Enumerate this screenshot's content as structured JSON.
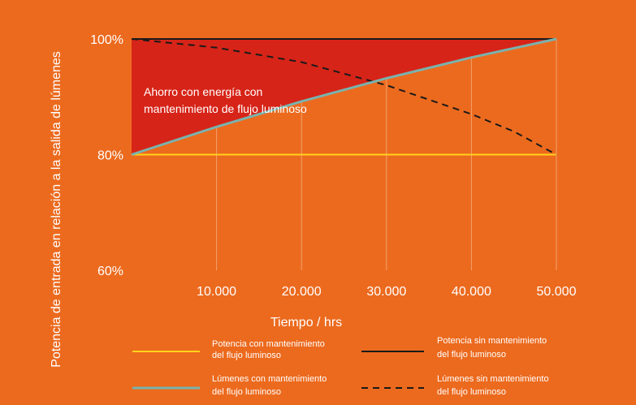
{
  "colors": {
    "background": "#EC6A1E",
    "savings_area": "#D72418",
    "yellow_line": "#FFD21A",
    "teal_line": "#79B3AE",
    "black_line": "#1a1a1a",
    "grid": "#F3A06F"
  },
  "chart_data": {
    "type": "line",
    "title": "",
    "xlabel": "Tiempo / hrs",
    "ylabel": "Potencia de entrada en relación a la salida de lúmenes",
    "xlim": [
      0,
      50000
    ],
    "ylim": [
      60,
      100
    ],
    "x_ticks": [
      10000,
      20000,
      30000,
      40000,
      50000
    ],
    "x_tick_labels": [
      "10.000",
      "20.000",
      "30.000",
      "40.000",
      "50.000"
    ],
    "y_ticks": [
      60,
      80,
      100
    ],
    "y_tick_labels": [
      "60%",
      "80%",
      "100%"
    ],
    "grid": "vertical",
    "annotation": {
      "line1": "Ahorro con energía con",
      "line2": "mantenimiento de flujo luminoso"
    },
    "series": [
      {
        "name_line1": "Potencia con mantenimiento",
        "name_line2": "del flujo luminoso",
        "style": "solid",
        "color": "#FFD21A",
        "x": [
          0,
          50000
        ],
        "y": [
          80,
          80
        ]
      },
      {
        "name_line1": "Potencia sin mantenimiento",
        "name_line2": "del flujo luminoso",
        "style": "solid",
        "color": "#1a1a1a",
        "x": [
          0,
          50000
        ],
        "y": [
          100,
          100
        ]
      },
      {
        "name_line1": "Lúmenes con mantenimiento",
        "name_line2": "del flujo luminoso",
        "style": "solid",
        "color": "#79B3AE",
        "x": [
          0,
          10000,
          20000,
          30000,
          40000,
          50000
        ],
        "y": [
          80,
          84.8,
          89.2,
          93.2,
          96.8,
          100
        ]
      },
      {
        "name_line1": "Lúmenes sin mantenimiento",
        "name_line2": "del flujo luminoso",
        "style": "dashed",
        "color": "#1a1a1a",
        "x": [
          0,
          10000,
          20000,
          30000,
          40000,
          45000,
          50000
        ],
        "y": [
          100,
          98.5,
          96,
          92,
          87,
          84,
          80
        ]
      }
    ]
  }
}
